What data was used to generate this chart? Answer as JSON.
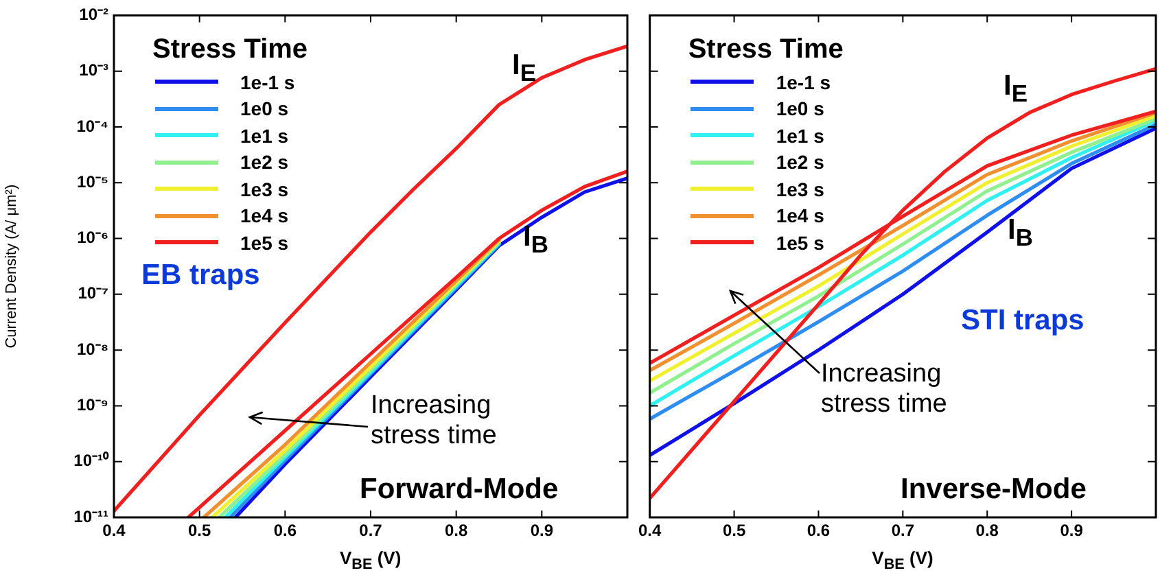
{
  "chart_data": [
    {
      "type": "line",
      "xlabel": "V$_{BE}$ (V)",
      "ylabel": "Current Density (A/ μm²)",
      "log": "y",
      "xlim": [
        0.4,
        1
      ],
      "ylim": [
        1e-11,
        0.01
      ],
      "xticks": [
        0.4,
        0.5,
        0.6,
        0.7,
        0.8,
        0.9,
        {
          "value": 1,
          "label": null
        }
      ],
      "yticks": [
        {
          "value": 1e-11,
          "label": "10⁻¹¹"
        },
        {
          "value": 1e-10,
          "label": "10⁻¹⁰"
        },
        {
          "value": 1e-09,
          "label": "10⁻⁹"
        },
        {
          "value": 1e-08,
          "label": "10⁻⁸"
        },
        {
          "value": 1e-07,
          "label": "10⁻⁷"
        },
        {
          "value": 1e-06,
          "label": "10⁻⁶"
        },
        {
          "value": 1e-05,
          "label": "10⁻⁵"
        },
        {
          "value": 0.0001,
          "label": "10⁻⁴"
        },
        {
          "value": 0.001,
          "label": "10⁻³"
        },
        {
          "value": 0.01,
          "label": "10⁻²"
        }
      ],
      "grid": false,
      "legend": "top left",
      "legend_title": "Stress Time",
      "marker": "none",
      "line_style": "solid",
      "annotations": [
        "EB traps",
        "Increasing stress time",
        "Forward-Mode",
        "I$_{E}$",
        "I$_{B}$"
      ],
      "series": [
        {
          "name": "1e-1 s",
          "color": "#1010e8",
          "x": [
            0.542,
            0.6,
            0.7,
            0.8,
            0.85,
            0.9,
            0.95,
            1.0
          ],
          "values": [
            1e-11,
            9e-11,
            3.3e-09,
            1.2e-07,
            7.4e-07,
            2.4e-06,
            6.8e-06,
            1.2e-05
          ]
        },
        {
          "name": "1e0 s",
          "color": "#2f8cf0",
          "x": [
            0.536,
            0.6,
            0.7,
            0.8,
            0.85
          ],
          "values": [
            1e-11,
            1.05e-10,
            3.7e-09,
            1.3e-07,
            7.8e-07
          ]
        },
        {
          "name": "1e1 s",
          "color": "#30f0f0",
          "x": [
            0.53,
            0.6,
            0.7,
            0.8,
            0.85
          ],
          "values": [
            1e-11,
            1.2e-10,
            4e-09,
            1.4e-07,
            8.2e-07
          ]
        },
        {
          "name": "1e2 s",
          "color": "#90f090",
          "x": [
            0.523,
            0.6,
            0.7,
            0.8,
            0.85
          ],
          "values": [
            1e-11,
            1.35e-10,
            4.4e-09,
            1.5e-07,
            8.6e-07
          ]
        },
        {
          "name": "1e3 s",
          "color": "#f0f030",
          "x": [
            0.515,
            0.6,
            0.7,
            0.8,
            0.85
          ],
          "values": [
            1e-11,
            1.6e-10,
            5e-09,
            1.6e-07,
            9e-07
          ]
        },
        {
          "name": "1e4 s",
          "color": "#f09030",
          "x": [
            0.505,
            0.6,
            0.7,
            0.8,
            0.85
          ],
          "values": [
            1e-11,
            2e-10,
            6e-09,
            1.75e-07,
            9.5e-07
          ]
        },
        {
          "name": "1e5 s",
          "color": "#f02020",
          "x": [
            0.487,
            0.6,
            0.7,
            0.8,
            0.85,
            0.9,
            0.95,
            1.0
          ],
          "values": [
            1e-11,
            3.6e-10,
            8.5e-09,
            2e-07,
            1e-06,
            3.2e-06,
            8.5e-06,
            1.6e-05
          ]
        },
        {
          "color": "#f02020",
          "x": [
            0.4,
            0.5,
            0.6,
            0.7,
            0.75,
            0.8,
            0.85,
            0.9,
            0.95,
            1.0
          ],
          "values": [
            1.3e-11,
            6.8e-10,
            3.1e-08,
            1.3e-06,
            7.6e-06,
            4.1e-05,
            0.00025,
            0.00076,
            0.0016,
            0.0028
          ]
        }
      ]
    },
    {
      "type": "line",
      "xlabel": "V$_{BE}$ (V)",
      "log": "y",
      "xlim": [
        0.4,
        1
      ],
      "ylim": [
        1e-11,
        0.01
      ],
      "tick_labels": "x",
      "xticks": [
        0.4,
        0.5,
        0.6,
        0.7,
        0.8,
        0.9,
        {
          "value": 1,
          "label": null
        }
      ],
      "yticks": [
        {
          "value": 1e-11,
          "label": null
        },
        {
          "value": 1e-10,
          "label": null
        },
        {
          "value": 1e-09,
          "label": null
        },
        {
          "value": 1e-08,
          "label": null
        },
        {
          "value": 1e-07,
          "label": null
        },
        {
          "value": 1e-06,
          "label": null
        },
        {
          "value": 1e-05,
          "label": null
        },
        {
          "value": 0.0001,
          "label": null
        },
        {
          "value": 0.001,
          "label": null
        },
        {
          "value": 0.01,
          "label": null
        }
      ],
      "grid": false,
      "legend": "top left",
      "legend_title": "Stress Time",
      "marker": "none",
      "line_style": "solid",
      "annotations": [
        "STI traps",
        "Increasing stress time",
        "Inverse-Mode",
        "I$_{E}$",
        "I$_{B}$"
      ],
      "series": [
        {
          "name": "1e-1 s",
          "color": "#1010e8",
          "x": [
            0.4,
            0.5,
            0.6,
            0.7,
            0.8,
            0.9,
            1.0
          ],
          "values": [
            1.3e-10,
            1.1e-09,
            1e-08,
            1e-07,
            1.3e-06,
            1.8e-05,
            9.5e-05
          ]
        },
        {
          "name": "1e0 s",
          "color": "#2f8cf0",
          "x": [
            0.4,
            0.5,
            0.6,
            0.7,
            0.8,
            0.9,
            1.0
          ],
          "values": [
            5.8e-10,
            4.2e-09,
            3.2e-08,
            2.6e-07,
            2.6e-06,
            2.2e-05,
            0.00011
          ]
        },
        {
          "name": "1e1 s",
          "color": "#30f0f0",
          "x": [
            0.4,
            0.5,
            0.6,
            0.7,
            0.8,
            0.9,
            1.0
          ],
          "values": [
            1e-09,
            7.9e-09,
            6e-08,
            5e-07,
            4.8e-06,
            2.8e-05,
            0.00013
          ]
        },
        {
          "name": "1e2 s",
          "color": "#90f090",
          "x": [
            0.4,
            0.5,
            0.6,
            0.7,
            0.8,
            0.9,
            1.0
          ],
          "values": [
            1.7e-09,
            1.3e-08,
            9.3e-08,
            7.9e-07,
            7.1e-06,
            3.5e-05,
            0.00014
          ]
        },
        {
          "name": "1e3 s",
          "color": "#f0f030",
          "x": [
            0.4,
            0.5,
            0.6,
            0.7,
            0.8,
            0.9,
            1.0
          ],
          "values": [
            2.8e-09,
            2e-08,
            1.4e-07,
            1.2e-06,
            1e-05,
            4.5e-05,
            0.00016
          ]
        },
        {
          "name": "1e4 s",
          "color": "#f09030",
          "x": [
            0.4,
            0.5,
            0.6,
            0.7,
            0.8,
            0.9,
            1.0
          ],
          "values": [
            4.3e-09,
            3e-08,
            2.2e-07,
            1.7e-06,
            1.4e-05,
            5.6e-05,
            0.00018
          ]
        },
        {
          "name": "1e5 s",
          "color": "#f02020",
          "x": [
            0.4,
            0.5,
            0.6,
            0.7,
            0.8,
            0.9,
            1.0
          ],
          "values": [
            5.8e-09,
            4.2e-08,
            3e-07,
            2.5e-06,
            2e-05,
            7.1e-05,
            0.00019
          ]
        },
        {
          "color": "#f02020",
          "x": [
            0.4,
            0.5,
            0.6,
            0.65,
            0.7,
            0.75,
            0.8,
            0.85,
            0.9,
            0.95,
            1.0
          ],
          "values": [
            2.2e-11,
            1.2e-09,
            6.6e-08,
            5e-07,
            3.2e-06,
            1.6e-05,
            6.3e-05,
            0.00018,
            0.00038,
            0.00066,
            0.0011
          ]
        }
      ]
    }
  ]
}
